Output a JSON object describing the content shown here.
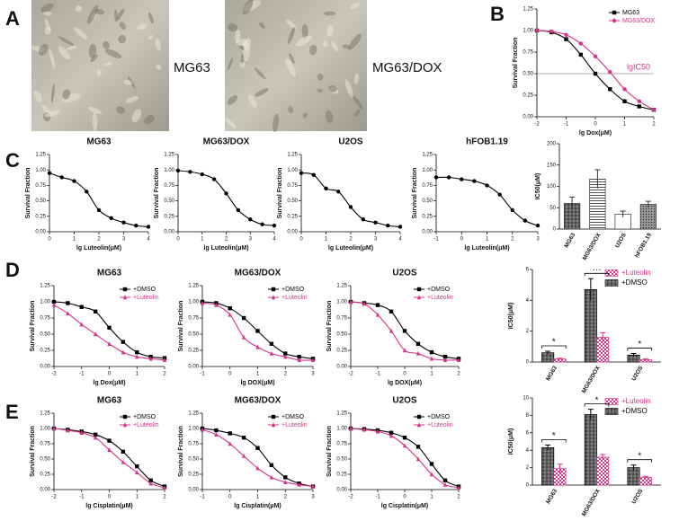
{
  "panel_labels": [
    "A",
    "B",
    "C",
    "D",
    "E"
  ],
  "photo_labels": [
    "MG63",
    "MG63/DOX"
  ],
  "chart_data": [
    {
      "type": "line",
      "x_label": "lg Dox(μM)",
      "y_label": "Survival Fraction",
      "legend": "upper right",
      "x": [
        -2,
        -1.5,
        -1,
        -0.5,
        0,
        0.5,
        1,
        1.5,
        2
      ],
      "series": [
        {
          "name": "MG63",
          "color": "#000000",
          "marker": "square",
          "values": [
            1.0,
            0.98,
            0.9,
            0.72,
            0.5,
            0.32,
            0.18,
            0.12,
            0.08
          ]
        },
        {
          "name": "MG63/DOX",
          "color": "#d6338a",
          "marker": "circle",
          "values": [
            1.0,
            0.99,
            0.95,
            0.85,
            0.7,
            0.52,
            0.32,
            0.18,
            0.08
          ]
        }
      ],
      "hline": 0.5,
      "annotation": "lgIC50",
      "xlim": [
        -2,
        2
      ],
      "xticks": [
        -2,
        -1,
        0,
        1,
        2
      ],
      "ylim": [
        0,
        1.25
      ],
      "yticks": [
        {
          "value": 0,
          "label": "0.00"
        },
        {
          "value": 0.25,
          "label": "0.25"
        },
        {
          "value": 0.5,
          "label": "0.50"
        },
        {
          "value": 0.75,
          "label": "0.75"
        },
        {
          "value": 1,
          "label": "1.00"
        },
        {
          "value": 1.25,
          "label": "1.25"
        }
      ]
    },
    {
      "type": "line",
      "title": "MG63",
      "x_label": "lg Luteolin(μM)",
      "y_label": "Survival Fraction",
      "x": [
        0,
        0.5,
        1,
        1.5,
        2,
        2.5,
        3,
        3.5,
        4
      ],
      "series": [
        {
          "color": "#000000",
          "marker": "circle",
          "values": [
            0.95,
            0.88,
            0.82,
            0.65,
            0.35,
            0.22,
            0.15,
            0.1,
            0.08
          ]
        }
      ],
      "xlim": [
        0,
        4
      ],
      "xticks": [
        0,
        1,
        2,
        3,
        4
      ],
      "ylim": [
        0,
        1.25
      ],
      "yticks": [
        {
          "value": 0,
          "label": "0.00"
        },
        {
          "value": 0.25,
          "label": "0.25"
        },
        {
          "value": 0.5,
          "label": "0.50"
        },
        {
          "value": 0.75,
          "label": "0.75"
        },
        {
          "value": 1,
          "label": "1.00"
        },
        {
          "value": 1.25,
          "label": "1.25"
        }
      ]
    },
    {
      "type": "line",
      "title": "MG63/DOX",
      "x_label": "lg Luteolin(μM)",
      "y_label": "Survival Fraction",
      "x": [
        0,
        0.5,
        1,
        1.5,
        2,
        2.5,
        3,
        3.5,
        4
      ],
      "series": [
        {
          "color": "#000000",
          "marker": "circle",
          "values": [
            0.99,
            0.97,
            0.93,
            0.85,
            0.62,
            0.35,
            0.2,
            0.12,
            0.1
          ]
        }
      ],
      "xlim": [
        0,
        4
      ],
      "xticks": [
        0,
        1,
        2,
        3,
        4
      ],
      "ylim": [
        0,
        1.25
      ],
      "yticks": [
        {
          "value": 0,
          "label": "0.00"
        },
        {
          "value": 0.25,
          "label": "0.25"
        },
        {
          "value": 0.5,
          "label": "0.50"
        },
        {
          "value": 0.75,
          "label": "0.75"
        },
        {
          "value": 1,
          "label": "1.00"
        },
        {
          "value": 1.25,
          "label": "1.25"
        }
      ]
    },
    {
      "type": "line",
      "title": "U2OS",
      "x_label": "lg Luteolin(μM)",
      "y_label": "Survival Fraction",
      "x": [
        0,
        0.5,
        1,
        1.5,
        2,
        2.5,
        3,
        3.5,
        4
      ],
      "series": [
        {
          "color": "#000000",
          "marker": "circle",
          "values": [
            0.95,
            0.92,
            0.7,
            0.65,
            0.4,
            0.2,
            0.15,
            0.1,
            0.08
          ]
        }
      ],
      "xlim": [
        0,
        4
      ],
      "xticks": [
        0,
        1,
        2,
        3,
        4
      ],
      "ylim": [
        0,
        1.25
      ],
      "yticks": [
        {
          "value": 0,
          "label": "0.00"
        },
        {
          "value": 0.25,
          "label": "0.25"
        },
        {
          "value": 0.5,
          "label": "0.50"
        },
        {
          "value": 0.75,
          "label": "0.75"
        },
        {
          "value": 1,
          "label": "1.00"
        },
        {
          "value": 1.25,
          "label": "1.25"
        }
      ]
    },
    {
      "type": "line",
      "title": "hFOB1.19",
      "x_label": "lg Luteolin(μM)",
      "y_label": "Survival Fraction",
      "x": [
        -1,
        -0.5,
        0,
        0.5,
        1,
        1.5,
        2,
        2.5,
        3
      ],
      "series": [
        {
          "color": "#000000",
          "marker": "circle",
          "values": [
            0.88,
            0.88,
            0.85,
            0.82,
            0.75,
            0.6,
            0.35,
            0.18,
            0.1
          ]
        }
      ],
      "xlim": [
        -1,
        3
      ],
      "xticks": [
        -1,
        0,
        1,
        2,
        3
      ],
      "ylim": [
        0,
        1.25
      ],
      "yticks": [
        {
          "value": 0,
          "label": "0.00"
        },
        {
          "value": 0.25,
          "label": "0.25"
        },
        {
          "value": 0.5,
          "label": "0.50"
        },
        {
          "value": 0.75,
          "label": "0.75"
        },
        {
          "value": 1,
          "label": "1.00"
        },
        {
          "value": 1.25,
          "label": "1.25"
        }
      ]
    },
    {
      "type": "bar",
      "y_label": "IC50(μM)",
      "categories": [
        "MG63",
        "MG63/DOX",
        "U2OS",
        "hFOB1.19"
      ],
      "series": [
        {
          "color": "#333333",
          "values": [
            60,
            117,
            35,
            58
          ],
          "errors": [
            15,
            22,
            7,
            7
          ]
        }
      ],
      "bar_patterns": [
        "grid",
        "hlines",
        "white",
        "dots"
      ],
      "ylim": [
        0,
        200
      ],
      "yticks": [
        0,
        50,
        100,
        150,
        200
      ]
    },
    {
      "type": "line",
      "title": "MG63",
      "x_label": "lg Dox(μM)",
      "y_label": "Survival Fraction",
      "legend": "upper right",
      "x": [
        -2,
        -1.5,
        -1,
        -0.5,
        0,
        0.5,
        1,
        1.5,
        2
      ],
      "series": [
        {
          "name": "+DMSO",
          "color": "#000000",
          "marker": "square",
          "values": [
            1.0,
            0.98,
            0.92,
            0.85,
            0.6,
            0.38,
            0.22,
            0.15,
            0.13
          ]
        },
        {
          "name": "+Luteolin",
          "color": "#d6338a",
          "marker": "triangle",
          "values": [
            0.95,
            0.82,
            0.65,
            0.5,
            0.35,
            0.22,
            0.15,
            0.12,
            0.1
          ]
        }
      ],
      "xlim": [
        -2,
        2
      ],
      "xticks": [
        -2,
        -1,
        0,
        1,
        2
      ],
      "ylim": [
        0,
        1.25
      ],
      "yticks": [
        {
          "value": 0,
          "label": "0.00"
        },
        {
          "value": 0.25,
          "label": "0.25"
        },
        {
          "value": 0.5,
          "label": "0.50"
        },
        {
          "value": 0.75,
          "label": "0.75"
        },
        {
          "value": 1,
          "label": "1.00"
        },
        {
          "value": 1.25,
          "label": "1.25"
        }
      ]
    },
    {
      "type": "line",
      "title": "MG63/DOX",
      "x_label": "lg DOX(μM)",
      "y_label": "Survival Fraction",
      "legend": "upper right",
      "x": [
        -1,
        -0.5,
        0,
        0.5,
        1,
        1.5,
        2,
        2.5,
        3
      ],
      "series": [
        {
          "name": "+DMSO",
          "color": "#000000",
          "marker": "square",
          "values": [
            1.0,
            0.98,
            0.9,
            0.75,
            0.55,
            0.35,
            0.2,
            0.15,
            0.12
          ]
        },
        {
          "name": "+Luteolin",
          "color": "#d6338a",
          "marker": "triangle",
          "values": [
            0.98,
            0.95,
            0.8,
            0.45,
            0.3,
            0.2,
            0.15,
            0.1,
            0.1
          ]
        }
      ],
      "xlim": [
        -1,
        3
      ],
      "xticks": [
        -1,
        0,
        1,
        2,
        3
      ],
      "ylim": [
        0,
        1.25
      ],
      "yticks": [
        {
          "value": 0,
          "label": "0.00"
        },
        {
          "value": 0.25,
          "label": "0.25"
        },
        {
          "value": 0.5,
          "label": "0.50"
        },
        {
          "value": 0.75,
          "label": "0.75"
        },
        {
          "value": 1,
          "label": "1.00"
        },
        {
          "value": 1.25,
          "label": "1.25"
        }
      ]
    },
    {
      "type": "line",
      "title": "U2OS",
      "x_label": "lg DOX(μM)",
      "y_label": "Survival Fraction",
      "legend": "upper right",
      "x": [
        -2,
        -1.5,
        -1,
        -0.5,
        0,
        0.5,
        1,
        1.5,
        2
      ],
      "series": [
        {
          "name": "+DMSO",
          "color": "#000000",
          "marker": "square",
          "values": [
            1.0,
            0.98,
            0.95,
            0.85,
            0.55,
            0.35,
            0.22,
            0.15,
            0.12
          ]
        },
        {
          "name": "+Luteolin",
          "color": "#d6338a",
          "marker": "triangle",
          "values": [
            1.0,
            0.97,
            0.8,
            0.55,
            0.25,
            0.2,
            0.12,
            0.1,
            0.1
          ]
        }
      ],
      "xlim": [
        -2,
        2
      ],
      "xticks": [
        -2,
        -1,
        0,
        1,
        2
      ],
      "ylim": [
        0,
        1.25
      ],
      "yticks": [
        {
          "value": 0,
          "label": "0.00"
        },
        {
          "value": 0.25,
          "label": "0.25"
        },
        {
          "value": 0.5,
          "label": "0.50"
        },
        {
          "value": 0.75,
          "label": "0.75"
        },
        {
          "value": 1,
          "label": "1.00"
        },
        {
          "value": 1.25,
          "label": "1.25"
        }
      ]
    },
    {
      "type": "bar",
      "y_label": "IC50(μM)",
      "legend": "upper right",
      "categories": [
        "MG63",
        "MG63/DOX",
        "U2OS"
      ],
      "series": [
        {
          "name": "+DMSO",
          "color": "#000000",
          "pattern": "grid",
          "values": [
            0.6,
            4.7,
            0.45
          ],
          "errors": [
            0.1,
            0.7,
            0.1
          ]
        },
        {
          "name": "+Luteolin",
          "color": "#d6338a",
          "pattern": "pink",
          "values": [
            0.2,
            1.6,
            0.15
          ],
          "errors": [
            0.05,
            0.3,
            0.05
          ]
        }
      ],
      "annotations": [
        "*",
        "···",
        "*"
      ],
      "ylim": [
        0,
        6
      ],
      "yticks": [
        0,
        2,
        4,
        6
      ]
    },
    {
      "type": "line",
      "title": "MG63",
      "x_label": "lg Cisplatin(μM)",
      "y_label": "Survival Fraction",
      "legend": "upper right",
      "x": [
        -2,
        -1.5,
        -1,
        -0.5,
        0,
        0.5,
        1,
        1.5,
        2
      ],
      "series": [
        {
          "name": "+DMSO",
          "color": "#000000",
          "marker": "square",
          "values": [
            1.0,
            0.98,
            0.95,
            0.9,
            0.8,
            0.62,
            0.38,
            0.15,
            0.05
          ]
        },
        {
          "name": "+Luteolin",
          "color": "#d6338a",
          "marker": "triangle",
          "values": [
            1.0,
            0.97,
            0.93,
            0.85,
            0.65,
            0.45,
            0.28,
            0.1,
            0.03
          ]
        }
      ],
      "xlim": [
        -2,
        2
      ],
      "xticks": [
        -2,
        -1,
        0,
        1,
        2
      ],
      "ylim": [
        0,
        1.25
      ],
      "yticks": [
        {
          "value": 0,
          "label": "0.00"
        },
        {
          "value": 0.25,
          "label": "0.25"
        },
        {
          "value": 0.5,
          "label": "0.50"
        },
        {
          "value": 0.75,
          "label": "0.75"
        },
        {
          "value": 1,
          "label": "1.00"
        },
        {
          "value": 1.25,
          "label": "1.25"
        }
      ]
    },
    {
      "type": "line",
      "title": "MG63/DOX",
      "x_label": "lg Cisplatin(μM)",
      "y_label": "Survival Fraction",
      "legend": "upper right",
      "x": [
        -1,
        -0.5,
        0,
        0.5,
        1,
        1.5,
        2,
        2.5,
        3
      ],
      "series": [
        {
          "name": "+DMSO",
          "color": "#000000",
          "marker": "square",
          "values": [
            1.0,
            0.97,
            0.92,
            0.85,
            0.68,
            0.4,
            0.2,
            0.1,
            0.05
          ]
        },
        {
          "name": "+Luteolin",
          "color": "#d6338a",
          "marker": "triangle",
          "values": [
            0.98,
            0.9,
            0.75,
            0.55,
            0.35,
            0.2,
            0.12,
            0.08,
            0.05
          ]
        }
      ],
      "xlim": [
        -1,
        3
      ],
      "xticks": [
        -1,
        0,
        1,
        2,
        3
      ],
      "ylim": [
        0,
        1.25
      ],
      "yticks": [
        {
          "value": 0,
          "label": "0.00"
        },
        {
          "value": 0.25,
          "label": "0.25"
        },
        {
          "value": 0.5,
          "label": "0.50"
        },
        {
          "value": 0.75,
          "label": "0.75"
        },
        {
          "value": 1,
          "label": "1.00"
        },
        {
          "value": 1.25,
          "label": "1.25"
        }
      ]
    },
    {
      "type": "line",
      "title": "U2OS",
      "x_label": "lg Cisplatin(μM)",
      "y_label": "Survival Fraction",
      "legend": "upper right",
      "x": [
        -2,
        -1.5,
        -1,
        -0.5,
        0,
        0.5,
        1,
        1.5,
        2
      ],
      "series": [
        {
          "name": "+DMSO",
          "color": "#000000",
          "marker": "square",
          "values": [
            1.0,
            0.99,
            0.97,
            0.93,
            0.85,
            0.7,
            0.42,
            0.15,
            0.05
          ]
        },
        {
          "name": "+Luteolin",
          "color": "#d6338a",
          "marker": "triangle",
          "values": [
            1.0,
            0.98,
            0.95,
            0.88,
            0.72,
            0.5,
            0.25,
            0.08,
            0.03
          ]
        }
      ],
      "xlim": [
        -2,
        2
      ],
      "xticks": [
        -2,
        -1,
        0,
        1,
        2
      ],
      "ylim": [
        0,
        1.25
      ],
      "yticks": [
        {
          "value": 0,
          "label": "0.00"
        },
        {
          "value": 0.25,
          "label": "0.25"
        },
        {
          "value": 0.5,
          "label": "0.50"
        },
        {
          "value": 0.75,
          "label": "0.75"
        },
        {
          "value": 1,
          "label": "1.00"
        },
        {
          "value": 1.25,
          "label": "1.25"
        }
      ]
    },
    {
      "type": "bar",
      "y_label": "IC50(μM)",
      "legend": "upper right",
      "categories": [
        "MG63",
        "MG63/DOX",
        "U2OS"
      ],
      "series": [
        {
          "name": "+DMSO",
          "color": "#000000",
          "pattern": "grid",
          "values": [
            4.3,
            8.1,
            2.0
          ],
          "errors": [
            0.3,
            0.6,
            0.3
          ]
        },
        {
          "name": "+Luteolin",
          "color": "#d6338a",
          "pattern": "pink",
          "values": [
            1.9,
            3.2,
            0.9
          ],
          "errors": [
            0.5,
            0.3,
            0.1
          ]
        }
      ],
      "annotations": [
        "*",
        "*",
        "*"
      ],
      "ylim": [
        0,
        10
      ],
      "yticks": [
        0,
        2,
        4,
        6,
        8,
        10
      ]
    }
  ]
}
